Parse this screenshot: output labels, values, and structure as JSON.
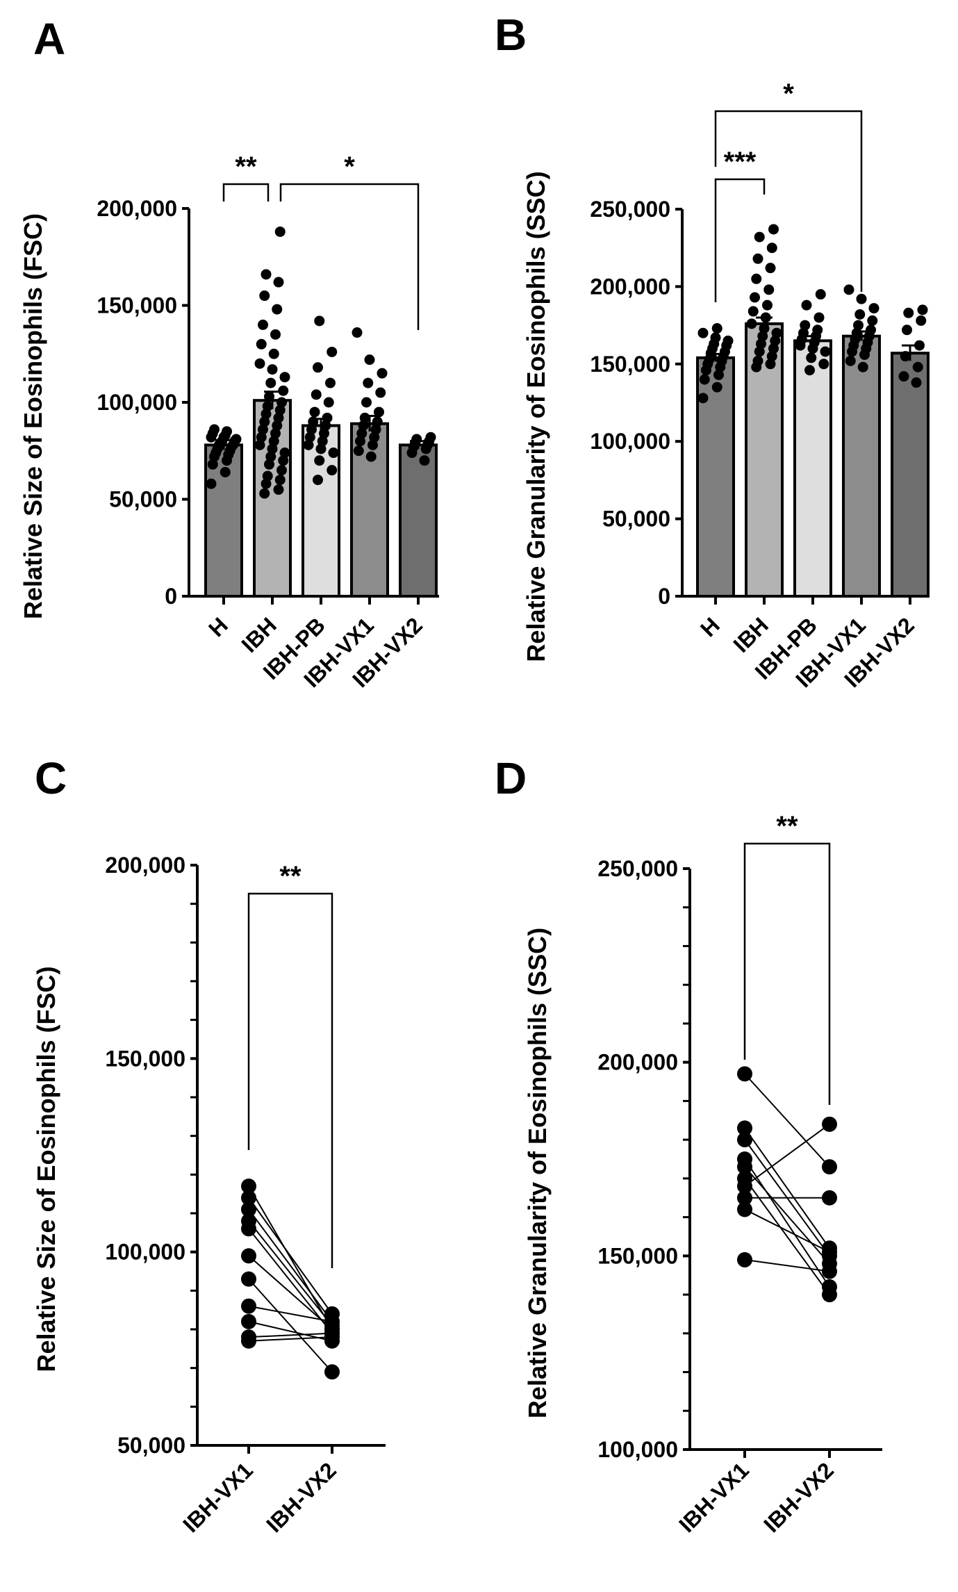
{
  "chart_data": [
    {
      "panel": "A",
      "type": "bar",
      "ylabel": "Relative Size of Eosinophils (FSC)",
      "ylim": [
        0,
        200000
      ],
      "yticks": [
        {
          "value": 0,
          "label": "0"
        },
        {
          "value": 50000,
          "label": "50,000"
        },
        {
          "value": 100000,
          "label": "100,000"
        },
        {
          "value": 150000,
          "label": "150,000"
        },
        {
          "value": 200000,
          "label": "200,000"
        }
      ],
      "categories": [
        "H",
        "IBH",
        "IBH-PB",
        "IBH-VX1",
        "IBH-VX2"
      ],
      "bar_colors": [
        "#7f7f7f",
        "#b3b3b3",
        "#dedede",
        "#8c8c8c",
        "#6e6e6e"
      ],
      "values": [
        78000,
        101000,
        88000,
        89000,
        78000
      ],
      "errors": [
        2500,
        4500,
        3500,
        4000,
        2000
      ],
      "points": [
        [
          58000,
          64000,
          68000,
          70000,
          72000,
          73000,
          74000,
          75000,
          76000,
          77000,
          78000,
          78000,
          79000,
          80000,
          80000,
          81000,
          82000,
          82000,
          83000,
          84000,
          85000,
          86000
        ],
        [
          53000,
          55000,
          58000,
          60000,
          62000,
          65000,
          68000,
          70000,
          72000,
          74000,
          76000,
          78000,
          80000,
          82000,
          84000,
          86000,
          88000,
          90000,
          92000,
          94000,
          96000,
          98000,
          100000,
          103000,
          106000,
          110000,
          113000,
          117000,
          120000,
          125000,
          130000,
          135000,
          140000,
          148000,
          155000,
          162000,
          166000,
          188000
        ],
        [
          60000,
          65000,
          70000,
          74000,
          76000,
          78000,
          80000,
          82000,
          84000,
          86000,
          88000,
          90000,
          92000,
          95000,
          100000,
          104000,
          110000,
          118000,
          126000,
          142000
        ],
        [
          72000,
          75000,
          78000,
          80000,
          82000,
          84000,
          86000,
          88000,
          90000,
          92000,
          95000,
          100000,
          105000,
          110000,
          115000,
          122000,
          136000
        ],
        [
          70000,
          74000,
          76000,
          77000,
          78000,
          79000,
          80000,
          81000,
          82000
        ]
      ],
      "brackets": [
        {
          "from": 0,
          "to": 1,
          "label": "**"
        },
        {
          "from": 1,
          "to": 4,
          "label": "*"
        }
      ]
    },
    {
      "panel": "B",
      "type": "bar",
      "ylabel": "Relative Granularity of Eosinophils (SSC)",
      "ylim": [
        0,
        250000
      ],
      "yticks": [
        {
          "value": 0,
          "label": "0"
        },
        {
          "value": 50000,
          "label": "50,000"
        },
        {
          "value": 100000,
          "label": "100,000"
        },
        {
          "value": 150000,
          "label": "150,000"
        },
        {
          "value": 200000,
          "label": "200,000"
        },
        {
          "value": 250000,
          "label": "250,000"
        }
      ],
      "categories": [
        "H",
        "IBH",
        "IBH-PB",
        "IBH-VX1",
        "IBH-VX2"
      ],
      "bar_colors": [
        "#7f7f7f",
        "#b3b3b3",
        "#dedede",
        "#8c8c8c",
        "#6e6e6e"
      ],
      "values": [
        154000,
        176000,
        165000,
        168000,
        157000
      ],
      "errors": [
        2500,
        4000,
        3000,
        3000,
        5000
      ],
      "points": [
        [
          128000,
          135000,
          140000,
          143000,
          146000,
          148000,
          150000,
          152000,
          153000,
          155000,
          157000,
          158000,
          160000,
          162000,
          163000,
          165000,
          167000,
          170000,
          173000
        ],
        [
          148000,
          150000,
          152000,
          155000,
          158000,
          160000,
          163000,
          165000,
          168000,
          170000,
          173000,
          176000,
          180000,
          184000,
          188000,
          193000,
          198000,
          205000,
          212000,
          218000,
          225000,
          232000,
          237000
        ],
        [
          146000,
          150000,
          154000,
          158000,
          160000,
          162000,
          164000,
          166000,
          168000,
          170000,
          172000,
          175000,
          180000,
          188000,
          195000
        ],
        [
          148000,
          152000,
          156000,
          158000,
          160000,
          162000,
          164000,
          166000,
          168000,
          170000,
          172000,
          175000,
          178000,
          182000,
          186000,
          192000,
          198000
        ],
        [
          138000,
          142000,
          148000,
          155000,
          162000,
          172000,
          178000,
          183000,
          185000
        ]
      ],
      "brackets": [
        {
          "from": 0,
          "to": 1,
          "label": "***"
        },
        {
          "from": 0,
          "to": 3,
          "label": "*"
        }
      ]
    },
    {
      "panel": "C",
      "type": "line",
      "ylabel": "Relative Size of Eosinophils (FSC)",
      "ylim": [
        50000,
        200000
      ],
      "yticks": [
        {
          "value": 50000,
          "label": "50,000"
        },
        {
          "value": 100000,
          "label": "100,000"
        },
        {
          "value": 150000,
          "label": "150,000"
        },
        {
          "value": 200000,
          "label": "200,000"
        }
      ],
      "categories": [
        "IBH-VX1",
        "IBH-VX2"
      ],
      "pairs": [
        [
          117000,
          80000
        ],
        [
          114000,
          84000
        ],
        [
          111000,
          82000
        ],
        [
          108000,
          81000
        ],
        [
          106000,
          79000
        ],
        [
          99000,
          80000
        ],
        [
          93000,
          69000
        ],
        [
          86000,
          82000
        ],
        [
          82000,
          77000
        ],
        [
          78000,
          79000
        ],
        [
          77000,
          78000
        ]
      ],
      "brackets": [
        {
          "from": 0,
          "to": 1,
          "label": "**"
        }
      ]
    },
    {
      "panel": "D",
      "type": "line",
      "ylabel": "Relative Granularity of Eosinophils (SSC)",
      "ylim": [
        100000,
        250000
      ],
      "yticks": [
        {
          "value": 100000,
          "label": "100,000"
        },
        {
          "value": 150000,
          "label": "150,000"
        },
        {
          "value": 200000,
          "label": "200,000"
        },
        {
          "value": 250000,
          "label": "250,000"
        }
      ],
      "categories": [
        "IBH-VX1",
        "IBH-VX2"
      ],
      "pairs": [
        [
          197000,
          173000
        ],
        [
          183000,
          152000
        ],
        [
          180000,
          150000
        ],
        [
          175000,
          142000
        ],
        [
          173000,
          148000
        ],
        [
          170000,
          140000
        ],
        [
          168000,
          184000
        ],
        [
          165000,
          165000
        ],
        [
          162000,
          151000
        ],
        [
          149000,
          146000
        ]
      ],
      "brackets": [
        {
          "from": 0,
          "to": 1,
          "label": "**"
        }
      ]
    }
  ]
}
